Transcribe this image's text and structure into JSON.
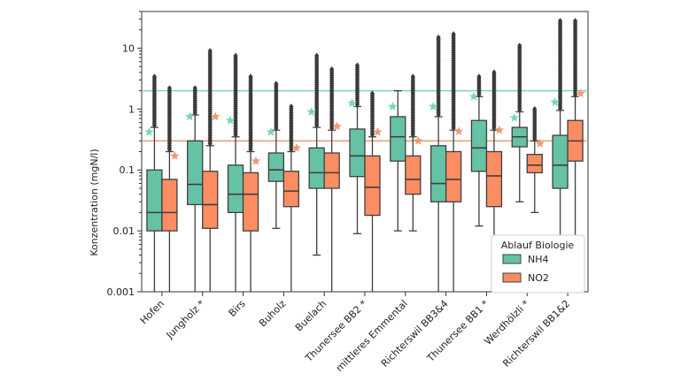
{
  "chart_data": {
    "type": "boxplot",
    "ylabel": "Konzentration (mgN/l)",
    "yscale": "log",
    "ylim": [
      0.001,
      40
    ],
    "yticks": [
      {
        "value": 0.001,
        "label": "0.001"
      },
      {
        "value": 0.01,
        "label": "0.01"
      },
      {
        "value": 0.1,
        "label": "0.1"
      },
      {
        "value": 1,
        "label": "1"
      },
      {
        "value": 10,
        "label": "10"
      }
    ],
    "reference_lines": [
      {
        "series": "NH4",
        "value": 2.0,
        "color": "#7ad6b6"
      },
      {
        "series": "NO2",
        "value": 0.3,
        "color": "#ee9a72"
      }
    ],
    "legend": {
      "title": "Ablauf Biologie",
      "position": "lower-right"
    },
    "series": [
      {
        "name": "NH4",
        "color": "#66c2a5"
      },
      {
        "name": "NO2",
        "color": "#fc8d62"
      }
    ],
    "categories": [
      "Hofen",
      "Jungholz *",
      "Birs",
      "Buholz",
      "Buelach",
      "Thunersee BB2 *",
      "mittleres Emmental",
      "Richterswil BB3&4",
      "Thunersee BB1 *",
      "Werdhölzli *",
      "Richterswil BB1&2"
    ],
    "boxes": {
      "NH4": [
        {
          "q1": 0.01,
          "median": 0.02,
          "q3": 0.1,
          "whisker_low": 0.001,
          "whisker_high": 0.5,
          "flier_max": 3.4,
          "mean": 0.42
        },
        {
          "q1": 0.027,
          "median": 0.058,
          "q3": 0.3,
          "whisker_low": 0.001,
          "whisker_high": 0.8,
          "flier_max": 2.2,
          "mean": 0.75
        },
        {
          "q1": 0.02,
          "median": 0.04,
          "q3": 0.12,
          "whisker_low": 0.001,
          "whisker_high": 0.35,
          "flier_max": 7.5,
          "mean": 0.65
        },
        {
          "q1": 0.065,
          "median": 0.1,
          "q3": 0.19,
          "whisker_low": 0.011,
          "whisker_high": 0.45,
          "flier_max": 2.6,
          "mean": 0.42
        },
        {
          "q1": 0.05,
          "median": 0.09,
          "q3": 0.23,
          "whisker_low": 0.004,
          "whisker_high": 0.5,
          "flier_max": 7.5,
          "mean": 0.9
        },
        {
          "q1": 0.078,
          "median": 0.17,
          "q3": 0.47,
          "whisker_low": 0.009,
          "whisker_high": 1.1,
          "flier_max": 5.2,
          "mean": 1.25
        },
        {
          "q1": 0.14,
          "median": 0.35,
          "q3": 0.75,
          "whisker_low": 0.01,
          "whisker_high": 2.0,
          "flier_max": 2.0,
          "mean": 1.1
        },
        {
          "q1": 0.03,
          "median": 0.06,
          "q3": 0.25,
          "whisker_low": 0.001,
          "whisker_high": 0.75,
          "flier_max": 15.0,
          "mean": 1.1
        },
        {
          "q1": 0.095,
          "median": 0.23,
          "q3": 0.65,
          "whisker_low": 0.012,
          "whisker_high": 1.6,
          "flier_max": 3.4,
          "mean": 1.6
        },
        {
          "q1": 0.24,
          "median": 0.35,
          "q3": 0.5,
          "whisker_low": 0.03,
          "whisker_high": 0.9,
          "flier_max": 11.0,
          "mean": 0.72
        },
        {
          "q1": 0.05,
          "median": 0.12,
          "q3": 0.37,
          "whisker_low": 0.001,
          "whisker_high": 0.95,
          "flier_max": 28.0,
          "mean": 1.3
        }
      ],
      "NO2": [
        {
          "q1": 0.01,
          "median": 0.02,
          "q3": 0.07,
          "whisker_low": 0.001,
          "whisker_high": 0.2,
          "flier_max": 2.2,
          "mean": 0.17
        },
        {
          "q1": 0.011,
          "median": 0.027,
          "q3": 0.095,
          "whisker_low": 0.001,
          "whisker_high": 0.25,
          "flier_max": 9.0,
          "mean": 0.75
        },
        {
          "q1": 0.01,
          "median": 0.04,
          "q3": 0.09,
          "whisker_low": 0.001,
          "whisker_high": 0.2,
          "flier_max": 3.4,
          "mean": 0.14
        },
        {
          "q1": 0.025,
          "median": 0.045,
          "q3": 0.095,
          "whisker_low": 0.001,
          "whisker_high": 0.2,
          "flier_max": 1.1,
          "mean": 0.23
        },
        {
          "q1": 0.05,
          "median": 0.09,
          "q3": 0.19,
          "whisker_low": 0.001,
          "whisker_high": 0.45,
          "flier_max": 4.5,
          "mean": 0.52
        },
        {
          "q1": 0.018,
          "median": 0.052,
          "q3": 0.17,
          "whisker_low": 0.001,
          "whisker_high": 0.35,
          "flier_max": 1.8,
          "mean": 0.42
        },
        {
          "q1": 0.04,
          "median": 0.07,
          "q3": 0.17,
          "whisker_low": 0.01,
          "whisker_high": 0.35,
          "flier_max": 3.4,
          "mean": 0.3
        },
        {
          "q1": 0.03,
          "median": 0.07,
          "q3": 0.2,
          "whisker_low": 0.001,
          "whisker_high": 0.45,
          "flier_max": 17.0,
          "mean": 0.43
        },
        {
          "q1": 0.025,
          "median": 0.08,
          "q3": 0.2,
          "whisker_low": 0.001,
          "whisker_high": 0.45,
          "flier_max": 4.0,
          "mean": 0.45
        },
        {
          "q1": 0.09,
          "median": 0.12,
          "q3": 0.18,
          "whisker_low": 0.02,
          "whisker_high": 0.3,
          "flier_max": 1.0,
          "mean": 0.27
        },
        {
          "q1": 0.14,
          "median": 0.3,
          "q3": 0.65,
          "whisker_low": 0.001,
          "whisker_high": 1.6,
          "flier_max": 28.0,
          "mean": 1.8
        }
      ]
    }
  },
  "colors": {
    "nh4_fill": "#66c2a5",
    "no2_fill": "#fc8d62",
    "edge": "#3f3f3f",
    "flier": "#3a3a3a",
    "nh4_line": "#7ad6b6",
    "no2_line": "#ee9a72"
  }
}
